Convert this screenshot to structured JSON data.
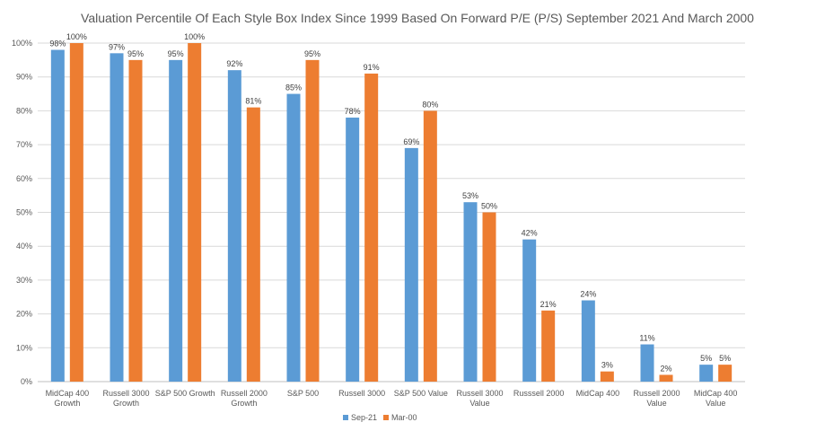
{
  "chart_data": {
    "type": "bar",
    "title": "Valuation Percentile Of Each Style Box Index Since 1999 Based On Forward P/E (P/S) September 2021 And March 2000",
    "categories": [
      [
        "MidCap 400",
        "Growth"
      ],
      [
        "Russell 3000",
        "Growth"
      ],
      [
        "S&P 500 Growth"
      ],
      [
        "Russell 2000",
        "Growth"
      ],
      [
        "S&P 500"
      ],
      [
        "Russell 3000"
      ],
      [
        "S&P 500 Value"
      ],
      [
        "Russell 3000",
        "Value"
      ],
      [
        "Russsell 2000"
      ],
      [
        "MidCap 400"
      ],
      [
        "Russell 2000",
        "Value"
      ],
      [
        "MidCap 400",
        "Value"
      ]
    ],
    "series": [
      {
        "name": "Sep-21",
        "color": "#5B9BD5",
        "values": [
          98,
          97,
          95,
          92,
          85,
          78,
          69,
          53,
          42,
          24,
          11,
          5
        ]
      },
      {
        "name": "Mar-00",
        "color": "#ED7D31",
        "values": [
          100,
          95,
          100,
          81,
          95,
          91,
          80,
          50,
          21,
          3,
          2,
          5
        ]
      }
    ],
    "ylim": [
      0,
      100
    ],
    "yticks": [
      0,
      10,
      20,
      30,
      40,
      50,
      60,
      70,
      80,
      90,
      100
    ],
    "ytick_suffix": "%",
    "label_suffix": "%",
    "grid": true,
    "legend": "bottom"
  }
}
